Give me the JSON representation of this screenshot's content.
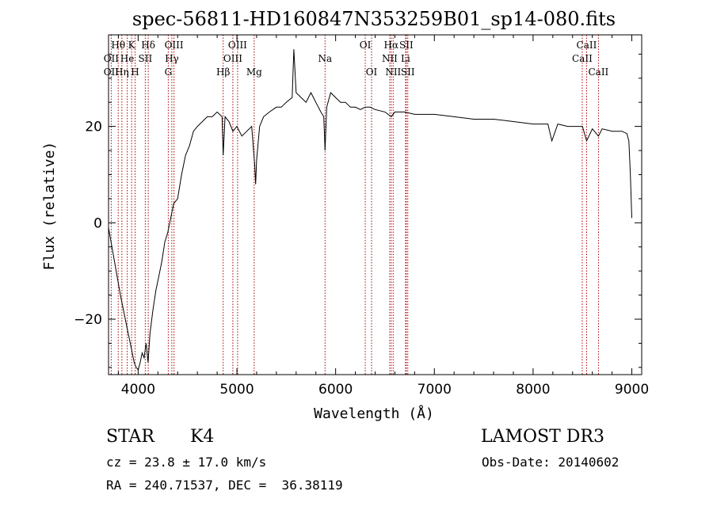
{
  "chart_data": {
    "type": "line",
    "title": "spec-56811-HD160847N353259B01_sp14-080.fits",
    "xlabel": "Wavelength (Å)",
    "ylabel": "Flux (relative)",
    "xlim": [
      3700,
      9100
    ],
    "ylim": [
      -31.5,
      39
    ],
    "x_ticks": [
      4000,
      5000,
      6000,
      7000,
      8000,
      9000
    ],
    "y_ticks": [
      -20,
      0,
      20
    ],
    "grid": false,
    "series": [
      {
        "x": [
          3700,
          3760,
          3820,
          3880,
          3930,
          3960,
          3980,
          4000,
          4020,
          4040,
          4060,
          4080,
          4100,
          4120,
          4150,
          4180,
          4210,
          4240,
          4270,
          4300,
          4330,
          4360,
          4400,
          4440,
          4480,
          4520,
          4560,
          4600,
          4650,
          4700,
          4750,
          4800,
          4850,
          4861,
          4880,
          4920,
          4960,
          5000,
          5050,
          5100,
          5150,
          5180,
          5190,
          5200,
          5230,
          5270,
          5330,
          5400,
          5450,
          5500,
          5560,
          5577,
          5600,
          5650,
          5700,
          5750,
          5800,
          5850,
          5880,
          5893,
          5910,
          5950,
          6000,
          6050,
          6100,
          6150,
          6200,
          6250,
          6300,
          6350,
          6400,
          6500,
          6563,
          6600,
          6700,
          6800,
          6900,
          7000,
          7200,
          7400,
          7600,
          7800,
          8000,
          8150,
          8190,
          8250,
          8350,
          8500,
          8542,
          8600,
          8662,
          8700,
          8800,
          8900,
          8950,
          8970,
          8985,
          9000
        ],
        "y": [
          -1,
          -8,
          -15,
          -21,
          -26,
          -29,
          -30,
          -30.5,
          -29,
          -27,
          -28,
          -25,
          -29,
          -23,
          -18,
          -14,
          -11,
          -8,
          -4,
          -2,
          1,
          4,
          5,
          10,
          14,
          16,
          19,
          20,
          21,
          22,
          22,
          23,
          22,
          14,
          22,
          21,
          19,
          20,
          18,
          19,
          20,
          12,
          8,
          13,
          20,
          22,
          23,
          24,
          24,
          25,
          26,
          36,
          27,
          26,
          25,
          27,
          25,
          23,
          22,
          15,
          24,
          27,
          26,
          25,
          25,
          24,
          24,
          23.5,
          24,
          24,
          23.5,
          23,
          22,
          23,
          23,
          22.5,
          22.5,
          22.5,
          22,
          21.5,
          21.5,
          21,
          20.5,
          20.5,
          17,
          20.5,
          20,
          20,
          17,
          19.5,
          18,
          19.5,
          19,
          19,
          18.5,
          17,
          10,
          1
        ]
      }
    ],
    "line_labels": [
      {
        "text": "Hθ",
        "wl": 3798,
        "row": 0
      },
      {
        "text": "OII",
        "wl": 3727,
        "row": 1
      },
      {
        "text": "OII",
        "wl": 3727,
        "row": 2
      },
      {
        "text": "K",
        "wl": 3934,
        "row": 0
      },
      {
        "text": "He",
        "wl": 3889,
        "row": 1
      },
      {
        "text": "Hη",
        "wl": 3835,
        "row": 2
      },
      {
        "text": "Hδ",
        "wl": 4102,
        "row": 0
      },
      {
        "text": "SII",
        "wl": 4072,
        "row": 1
      },
      {
        "text": "H",
        "wl": 3969,
        "row": 2
      },
      {
        "text": "OIII",
        "wl": 4363,
        "row": 0
      },
      {
        "text": "Hγ",
        "wl": 4341,
        "row": 1
      },
      {
        "text": "G",
        "wl": 4305,
        "row": 2
      },
      {
        "text": "OIII",
        "wl": 5007,
        "row": 0
      },
      {
        "text": "OIII",
        "wl": 4959,
        "row": 1
      },
      {
        "text": "Hβ",
        "wl": 4861,
        "row": 2
      },
      {
        "text": "Mg",
        "wl": 5175,
        "row": 2
      },
      {
        "text": "Na",
        "wl": 5893,
        "row": 1
      },
      {
        "text": "OI",
        "wl": 6300,
        "row": 0
      },
      {
        "text": "OI",
        "wl": 6364,
        "row": 2
      },
      {
        "text": "Hα",
        "wl": 6563,
        "row": 0
      },
      {
        "text": "SII",
        "wl": 6716,
        "row": 0
      },
      {
        "text": "NII",
        "wl": 6548,
        "row": 1
      },
      {
        "text": "Li",
        "wl": 6708,
        "row": 1
      },
      {
        "text": "NII",
        "wl": 6583,
        "row": 2
      },
      {
        "text": "SII",
        "wl": 6731,
        "row": 2
      },
      {
        "text": "CaII",
        "wl": 8542,
        "row": 0
      },
      {
        "text": "CaII",
        "wl": 8498,
        "row": 1
      },
      {
        "text": "CaII",
        "wl": 8662,
        "row": 2
      }
    ],
    "line_wavelengths": [
      3727,
      3798,
      3835,
      3889,
      3934,
      3969,
      4072,
      4102,
      4305,
      4341,
      4363,
      4861,
      4959,
      5007,
      5175,
      5893,
      6300,
      6364,
      6548,
      6563,
      6583,
      6708,
      6716,
      6731,
      8498,
      8542,
      8662
    ]
  },
  "info": {
    "object_class": "STAR",
    "subclass": "K4",
    "survey": "LAMOST DR3",
    "cz": "cz = 23.8 ± 17.0 km/s",
    "obs_date": "Obs-Date: 20140602",
    "radec": "RA = 240.71537, DEC =  36.38119"
  },
  "colors": {
    "spectrum": "#000000",
    "line_markers": "#b00000",
    "axes": "#000000"
  }
}
